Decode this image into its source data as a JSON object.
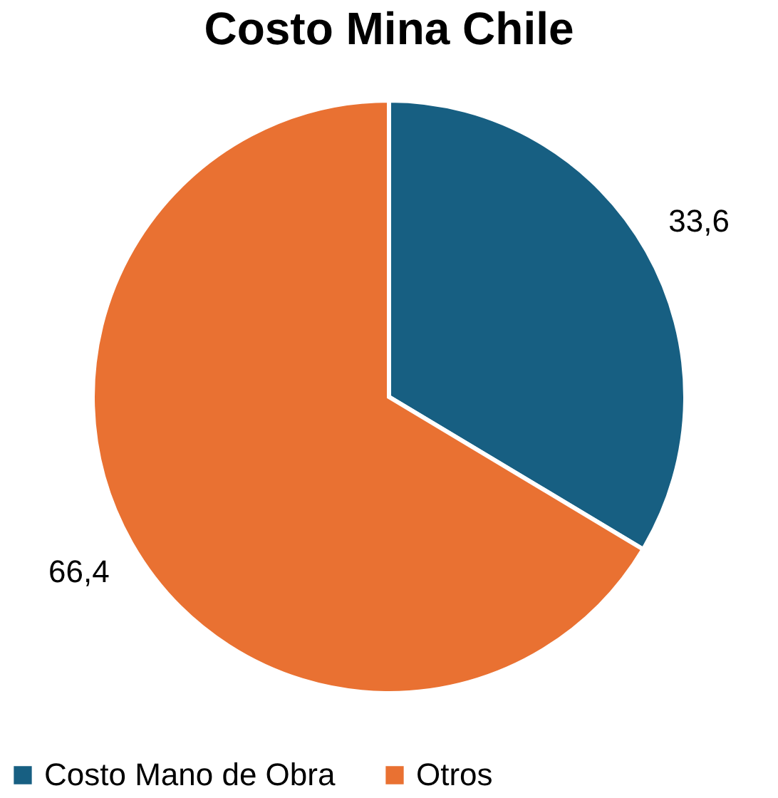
{
  "chart_data": {
    "type": "pie",
    "title": "Costo Mina Chile",
    "categories": [
      "Costo Mano de Obra",
      "Otros"
    ],
    "values": [
      33.6,
      66.4
    ],
    "colors": [
      "#175f82",
      "#e97132"
    ],
    "value_labels": [
      "33,6",
      "66,4"
    ],
    "legend": "bottom"
  }
}
